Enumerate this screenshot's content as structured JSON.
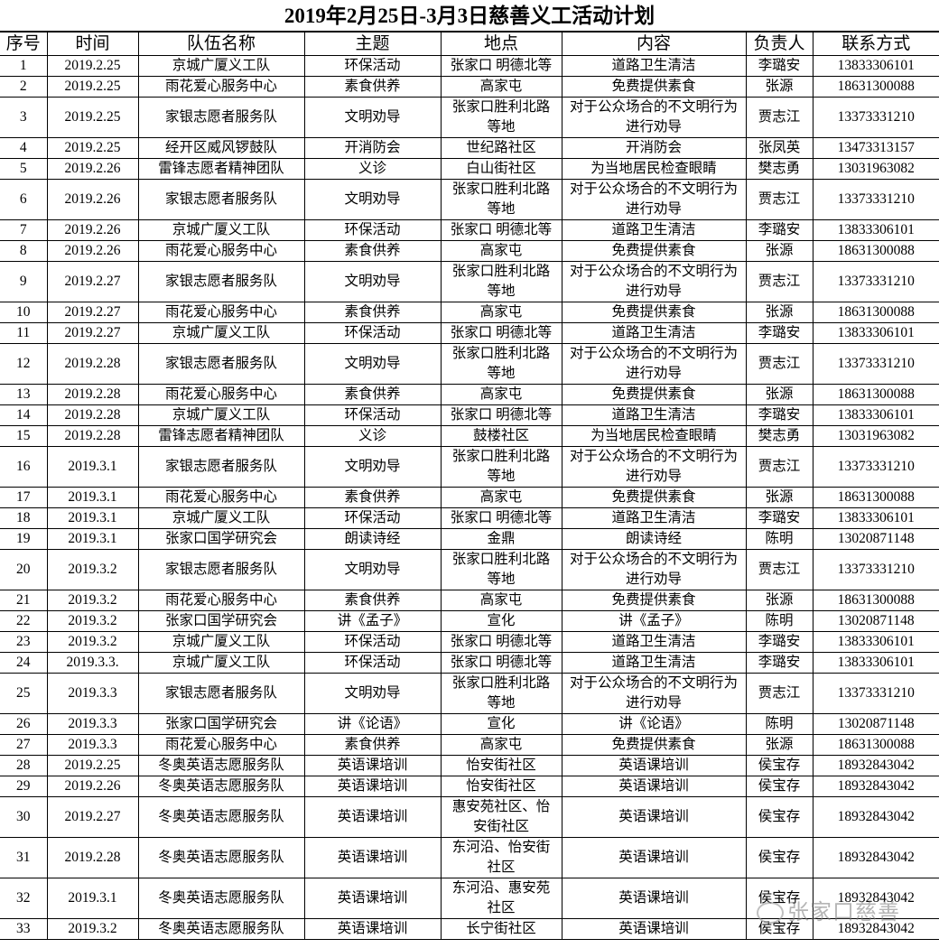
{
  "title": "2019年2月25日-3月3日慈善义工活动计划",
  "headers": [
    "序号",
    "时间",
    "队伍名称",
    "主题",
    "地点",
    "内容",
    "负责人",
    "联系方式"
  ],
  "rows": [
    [
      "1",
      "2019.2.25",
      "京城广厦义工队",
      "环保活动",
      "张家口 明德北等",
      "道路卫生清洁",
      "李璐安",
      "13833306101"
    ],
    [
      "2",
      "2019.2.25",
      "雨花爱心服务中心",
      "素食供养",
      "高家屯",
      "免费提供素食",
      "张源",
      "18631300088"
    ],
    [
      "3",
      "2019.2.25",
      "家银志愿者服务队",
      "文明劝导",
      "张家口胜利北路\n等地",
      "对于公众场合的不文明行为\n进行劝导",
      "贾志江",
      "13373331210"
    ],
    [
      "4",
      "2019.2.25",
      "经开区威风锣鼓队",
      "开消防会",
      "世纪路社区",
      "开消防会",
      "张凤英",
      "13473313157"
    ],
    [
      "5",
      "2019.2.26",
      "雷锋志愿者精神团队",
      "义诊",
      "白山街社区",
      "为当地居民检查眼睛",
      "樊志勇",
      "13031963082"
    ],
    [
      "6",
      "2019.2.26",
      "家银志愿者服务队",
      "文明劝导",
      "张家口胜利北路\n等地",
      "对于公众场合的不文明行为\n进行劝导",
      "贾志江",
      "13373331210"
    ],
    [
      "7",
      "2019.2.26",
      "京城广厦义工队",
      "环保活动",
      "张家口 明德北等",
      "道路卫生清洁",
      "李璐安",
      "13833306101"
    ],
    [
      "8",
      "2019.2.26",
      "雨花爱心服务中心",
      "素食供养",
      "高家屯",
      "免费提供素食",
      "张源",
      "18631300088"
    ],
    [
      "9",
      "2019.2.27",
      "家银志愿者服务队",
      "文明劝导",
      "张家口胜利北路\n等地",
      "对于公众场合的不文明行为\n进行劝导",
      "贾志江",
      "13373331210"
    ],
    [
      "10",
      "2019.2.27",
      "雨花爱心服务中心",
      "素食供养",
      "高家屯",
      "免费提供素食",
      "张源",
      "18631300088"
    ],
    [
      "11",
      "2019.2.27",
      "京城广厦义工队",
      "环保活动",
      "张家口 明德北等",
      "道路卫生清洁",
      "李璐安",
      "13833306101"
    ],
    [
      "12",
      "2019.2.28",
      "家银志愿者服务队",
      "文明劝导",
      "张家口胜利北路\n等地",
      "对于公众场合的不文明行为\n进行劝导",
      "贾志江",
      "13373331210"
    ],
    [
      "13",
      "2019.2.28",
      "雨花爱心服务中心",
      "素食供养",
      "高家屯",
      "免费提供素食",
      "张源",
      "18631300088"
    ],
    [
      "14",
      "2019.2.28",
      "京城广厦义工队",
      "环保活动",
      "张家口 明德北等",
      "道路卫生清洁",
      "李璐安",
      "13833306101"
    ],
    [
      "15",
      "2019.2.28",
      "雷锋志愿者精神团队",
      "义诊",
      "鼓楼社区",
      "为当地居民检查眼睛",
      "樊志勇",
      "13031963082"
    ],
    [
      "16",
      "2019.3.1",
      "家银志愿者服务队",
      "文明劝导",
      "张家口胜利北路\n等地",
      "对于公众场合的不文明行为\n进行劝导",
      "贾志江",
      "13373331210"
    ],
    [
      "17",
      "2019.3.1",
      "雨花爱心服务中心",
      "素食供养",
      "高家屯",
      "免费提供素食",
      "张源",
      "18631300088"
    ],
    [
      "18",
      "2019.3.1",
      "京城广厦义工队",
      "环保活动",
      "张家口 明德北等",
      "道路卫生清洁",
      "李璐安",
      "13833306101"
    ],
    [
      "19",
      "2019.3.1",
      "张家口国学研究会",
      "朗读诗经",
      "金鼎",
      "朗读诗经",
      "陈明",
      "13020871148"
    ],
    [
      "20",
      "2019.3.2",
      "家银志愿者服务队",
      "文明劝导",
      "张家口胜利北路\n等地",
      "对于公众场合的不文明行为\n进行劝导",
      "贾志江",
      "13373331210"
    ],
    [
      "21",
      "2019.3.2",
      "雨花爱心服务中心",
      "素食供养",
      "高家屯",
      "免费提供素食",
      "张源",
      "18631300088"
    ],
    [
      "22",
      "2019.3.2",
      "张家口国学研究会",
      "讲《孟子》",
      "宣化",
      "讲《孟子》",
      "陈明",
      "13020871148"
    ],
    [
      "23",
      "2019.3.2",
      "京城广厦义工队",
      "环保活动",
      "张家口 明德北等",
      "道路卫生清洁",
      "李璐安",
      "13833306101"
    ],
    [
      "24",
      "2019.3.3.",
      "京城广厦义工队",
      "环保活动",
      "张家口 明德北等",
      "道路卫生清洁",
      "李璐安",
      "13833306101"
    ],
    [
      "25",
      "2019.3.3",
      "家银志愿者服务队",
      "文明劝导",
      "张家口胜利北路\n等地",
      "对于公众场合的不文明行为\n进行劝导",
      "贾志江",
      "13373331210"
    ],
    [
      "26",
      "2019.3.3",
      "张家口国学研究会",
      "讲《论语》",
      "宣化",
      "讲《论语》",
      "陈明",
      "13020871148"
    ],
    [
      "27",
      "2019.3.3",
      "雨花爱心服务中心",
      "素食供养",
      "高家屯",
      "免费提供素食",
      "张源",
      "18631300088"
    ],
    [
      "28",
      "2019.2.25",
      "冬奥英语志愿服务队",
      "英语课培训",
      "怡安街社区",
      "英语课培训",
      "侯宝存",
      "18932843042"
    ],
    [
      "29",
      "2019.2.26",
      "冬奥英语志愿服务队",
      "英语课培训",
      "怡安街社区",
      "英语课培训",
      "侯宝存",
      "18932843042"
    ],
    [
      "30",
      "2019.2.27",
      "冬奥英语志愿服务队",
      "英语课培训",
      "惠安苑社区、怡\n安街社区",
      "英语课培训",
      "侯宝存",
      "18932843042"
    ],
    [
      "31",
      "2019.2.28",
      "冬奥英语志愿服务队",
      "英语课培训",
      "东河沿、怡安街\n社区",
      "英语课培训",
      "侯宝存",
      "18932843042"
    ],
    [
      "32",
      "2019.3.1",
      "冬奥英语志愿服务队",
      "英语课培训",
      "东河沿、惠安苑\n社区",
      "英语课培训",
      "侯宝存",
      "18932843042"
    ],
    [
      "33",
      "2019.3.2",
      "冬奥英语志愿服务队",
      "英语课培训",
      "长宁街社区",
      "英语课培训",
      "侯宝存",
      "18932843042"
    ]
  ],
  "watermark": {
    "text": "张家口慈善",
    "icon": "wechat-icon"
  }
}
